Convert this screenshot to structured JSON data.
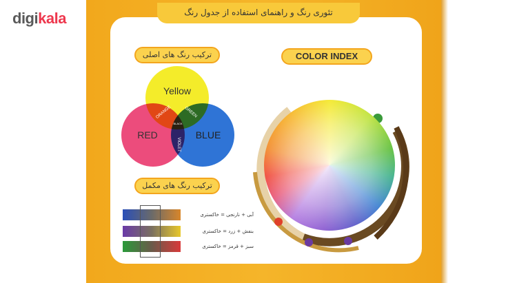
{
  "logo": {
    "digi": "digi",
    "kala": "kala"
  },
  "poster": {
    "title": "تئوری رنگ و راهنمای استفاده از جدول رنگ",
    "primary": {
      "heading": "ترکیب رنگ های اصلی",
      "yellow": "Yellow",
      "red": "RED",
      "blue": "BLUE",
      "orange": "ORANGE",
      "green": "GREEN",
      "violet": "VIOLET",
      "black": "BLACK"
    },
    "complementary": {
      "heading": "ترکیب رنگ های مکمل",
      "rows": [
        "آبی + نارنجی = خاکستری",
        "بنفش + زرد = خاکستری",
        "سبز + قرمز = خاکستری"
      ]
    },
    "index": {
      "heading": "COLOR INDEX"
    }
  }
}
